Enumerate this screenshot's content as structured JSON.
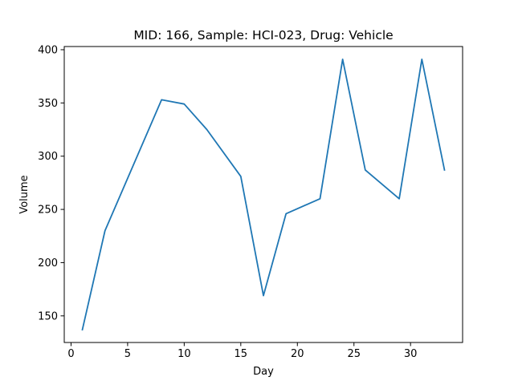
{
  "chart_data": {
    "type": "line",
    "title": "MID: 166, Sample: HCI-023, Drug: Vehicle",
    "xlabel": "Day",
    "ylabel": "Volume",
    "xlim": [
      -0.6,
      34.6
    ],
    "ylim": [
      125,
      403
    ],
    "xticks": [
      0,
      5,
      10,
      15,
      20,
      25,
      30
    ],
    "yticks": [
      150,
      200,
      250,
      300,
      350,
      400
    ],
    "grid": false,
    "series": [
      {
        "color": "#1f77b4",
        "x": [
          1,
          3,
          8,
          10,
          12,
          15,
          17,
          19,
          22,
          24,
          26,
          29,
          31,
          33
        ],
        "y": [
          137,
          230,
          353,
          349,
          325,
          281,
          169,
          246,
          260,
          391,
          287,
          260,
          391,
          287
        ]
      }
    ]
  }
}
